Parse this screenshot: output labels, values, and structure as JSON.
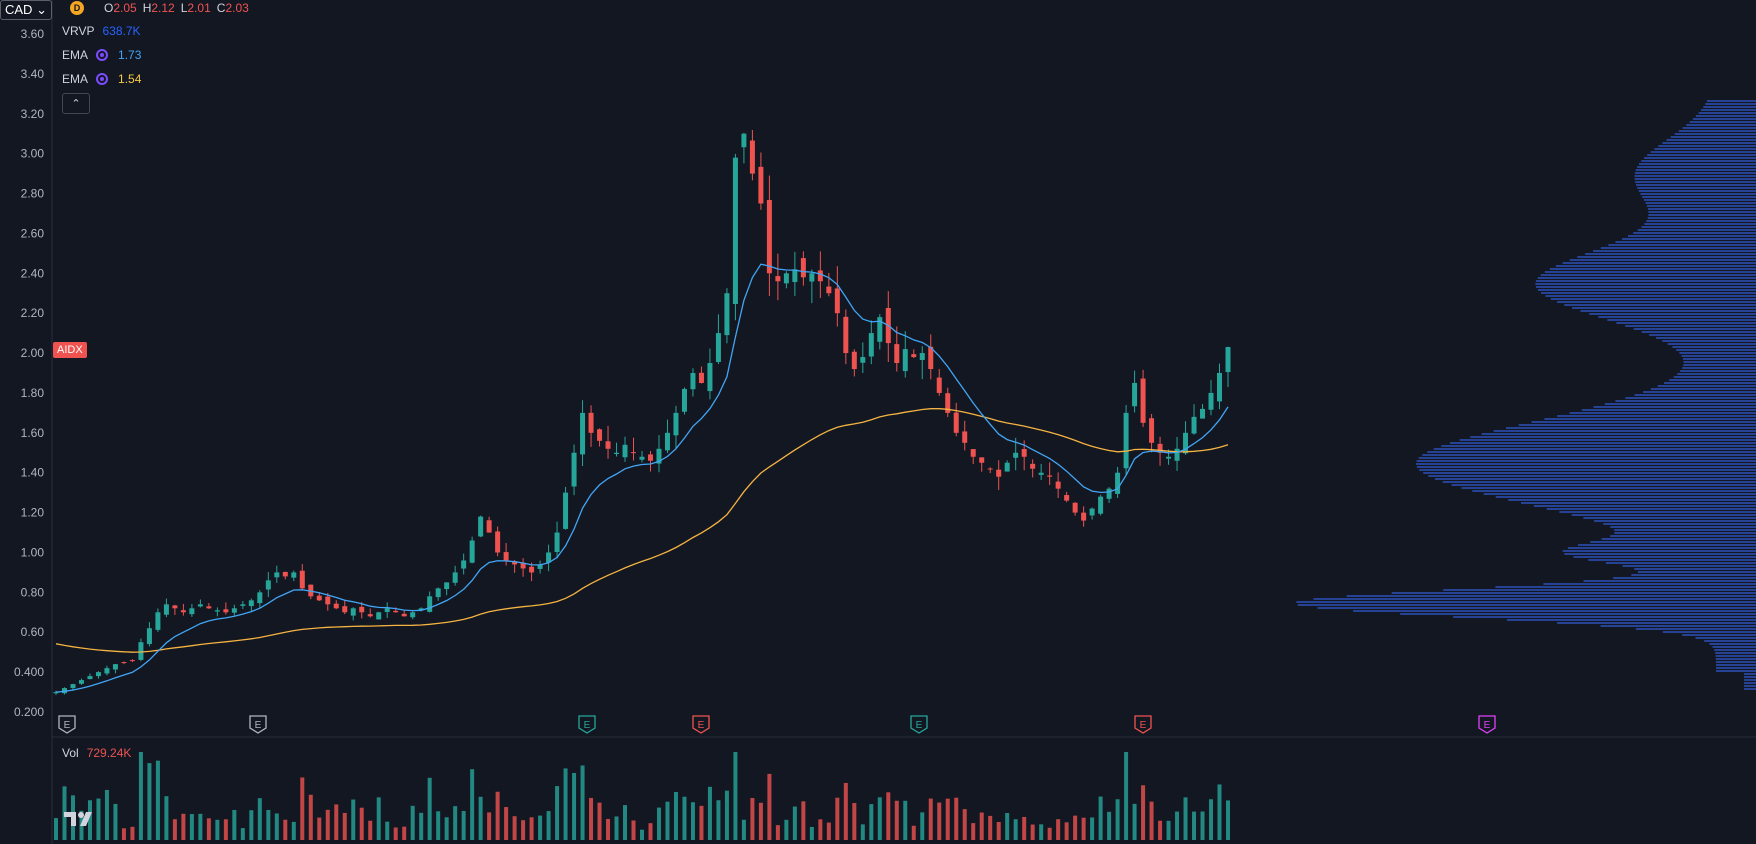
{
  "header": {
    "currency": "CAD",
    "interval_badge": "D",
    "ohlc": {
      "o_label": "O",
      "o": "2.05",
      "h_label": "H",
      "h": "2.12",
      "l_label": "L",
      "l": "2.01",
      "c_label": "C",
      "c": "2.03"
    }
  },
  "indicators": [
    {
      "name": "VRVP",
      "value": "638.7K",
      "color": "#2962ff"
    },
    {
      "name": "EMA",
      "value": "1.73",
      "color": "#42a5f5"
    },
    {
      "name": "EMA",
      "value": "1.54",
      "color": "#f5c842"
    }
  ],
  "collapse_icon": "chevron-up-icon",
  "ticker": "AIDX",
  "volume": {
    "name": "Vol",
    "value": "729.24K"
  },
  "colors": {
    "up": "#26a69a",
    "down": "#ef5350",
    "ema_fast": "#42a5f5",
    "ema_slow": "#f5b342",
    "profile": "#2a4aa8"
  },
  "chart_data": {
    "type": "candlestick",
    "y_ticks": [
      "3.60",
      "3.40",
      "3.20",
      "3.00",
      "2.80",
      "2.60",
      "2.40",
      "2.20",
      "2.00",
      "1.80",
      "1.60",
      "1.40",
      "1.20",
      "1.00",
      "0.80",
      "0.60",
      "0.400",
      "0.200"
    ],
    "ylim": [
      0.2,
      3.6
    ],
    "closes": [
      0.3,
      0.32,
      0.34,
      0.36,
      0.38,
      0.4,
      0.42,
      0.44,
      0.45,
      0.46,
      0.55,
      0.62,
      0.7,
      0.74,
      0.72,
      0.7,
      0.72,
      0.74,
      0.72,
      0.71,
      0.7,
      0.72,
      0.74,
      0.76,
      0.8,
      0.86,
      0.9,
      0.88,
      0.9,
      0.82,
      0.78,
      0.76,
      0.74,
      0.72,
      0.7,
      0.72,
      0.7,
      0.68,
      0.7,
      0.72,
      0.7,
      0.68,
      0.7,
      0.72,
      0.78,
      0.82,
      0.85,
      0.9,
      0.96,
      1.06,
      1.18,
      1.1,
      1.0,
      0.96,
      0.94,
      0.92,
      0.9,
      0.94,
      1.0,
      1.1,
      1.3,
      1.5,
      1.7,
      1.6,
      1.56,
      1.52,
      1.5,
      1.54,
      1.5,
      1.48,
      1.46,
      1.52,
      1.6,
      1.7,
      1.82,
      1.9,
      1.85,
      1.95,
      2.1,
      2.3,
      2.98,
      3.1,
      2.9,
      2.75,
      2.4,
      2.36,
      2.4,
      2.42,
      2.38,
      2.4,
      2.36,
      2.3,
      2.2,
      2.0,
      1.92,
      1.98,
      2.1,
      2.18,
      2.05,
      1.95,
      2.02,
      1.98,
      2.0,
      1.92,
      1.8,
      1.7,
      1.6,
      1.55,
      1.48,
      1.45,
      1.42,
      1.38,
      1.45,
      1.5,
      1.48,
      1.42,
      1.4,
      1.38,
      1.32,
      1.26,
      1.2,
      1.16,
      1.22,
      1.28,
      1.32,
      1.4,
      1.7,
      1.85,
      1.65,
      1.55,
      1.5,
      1.48,
      1.52,
      1.6,
      1.68,
      1.72,
      1.8,
      1.9,
      2.03
    ],
    "ema_fast_end": 1.73,
    "ema_slow_end": 1.54,
    "event_markers": [
      {
        "label": "E",
        "color": "#b2b5be"
      },
      {
        "label": "E",
        "color": "#b2b5be"
      },
      {
        "label": "E",
        "color": "#26a69a"
      },
      {
        "label": "E",
        "color": "#ef5350"
      },
      {
        "label": "E",
        "color": "#26a69a"
      },
      {
        "label": "E",
        "color": "#ef5350"
      },
      {
        "label": "E",
        "color": "#e040fb"
      }
    ]
  }
}
